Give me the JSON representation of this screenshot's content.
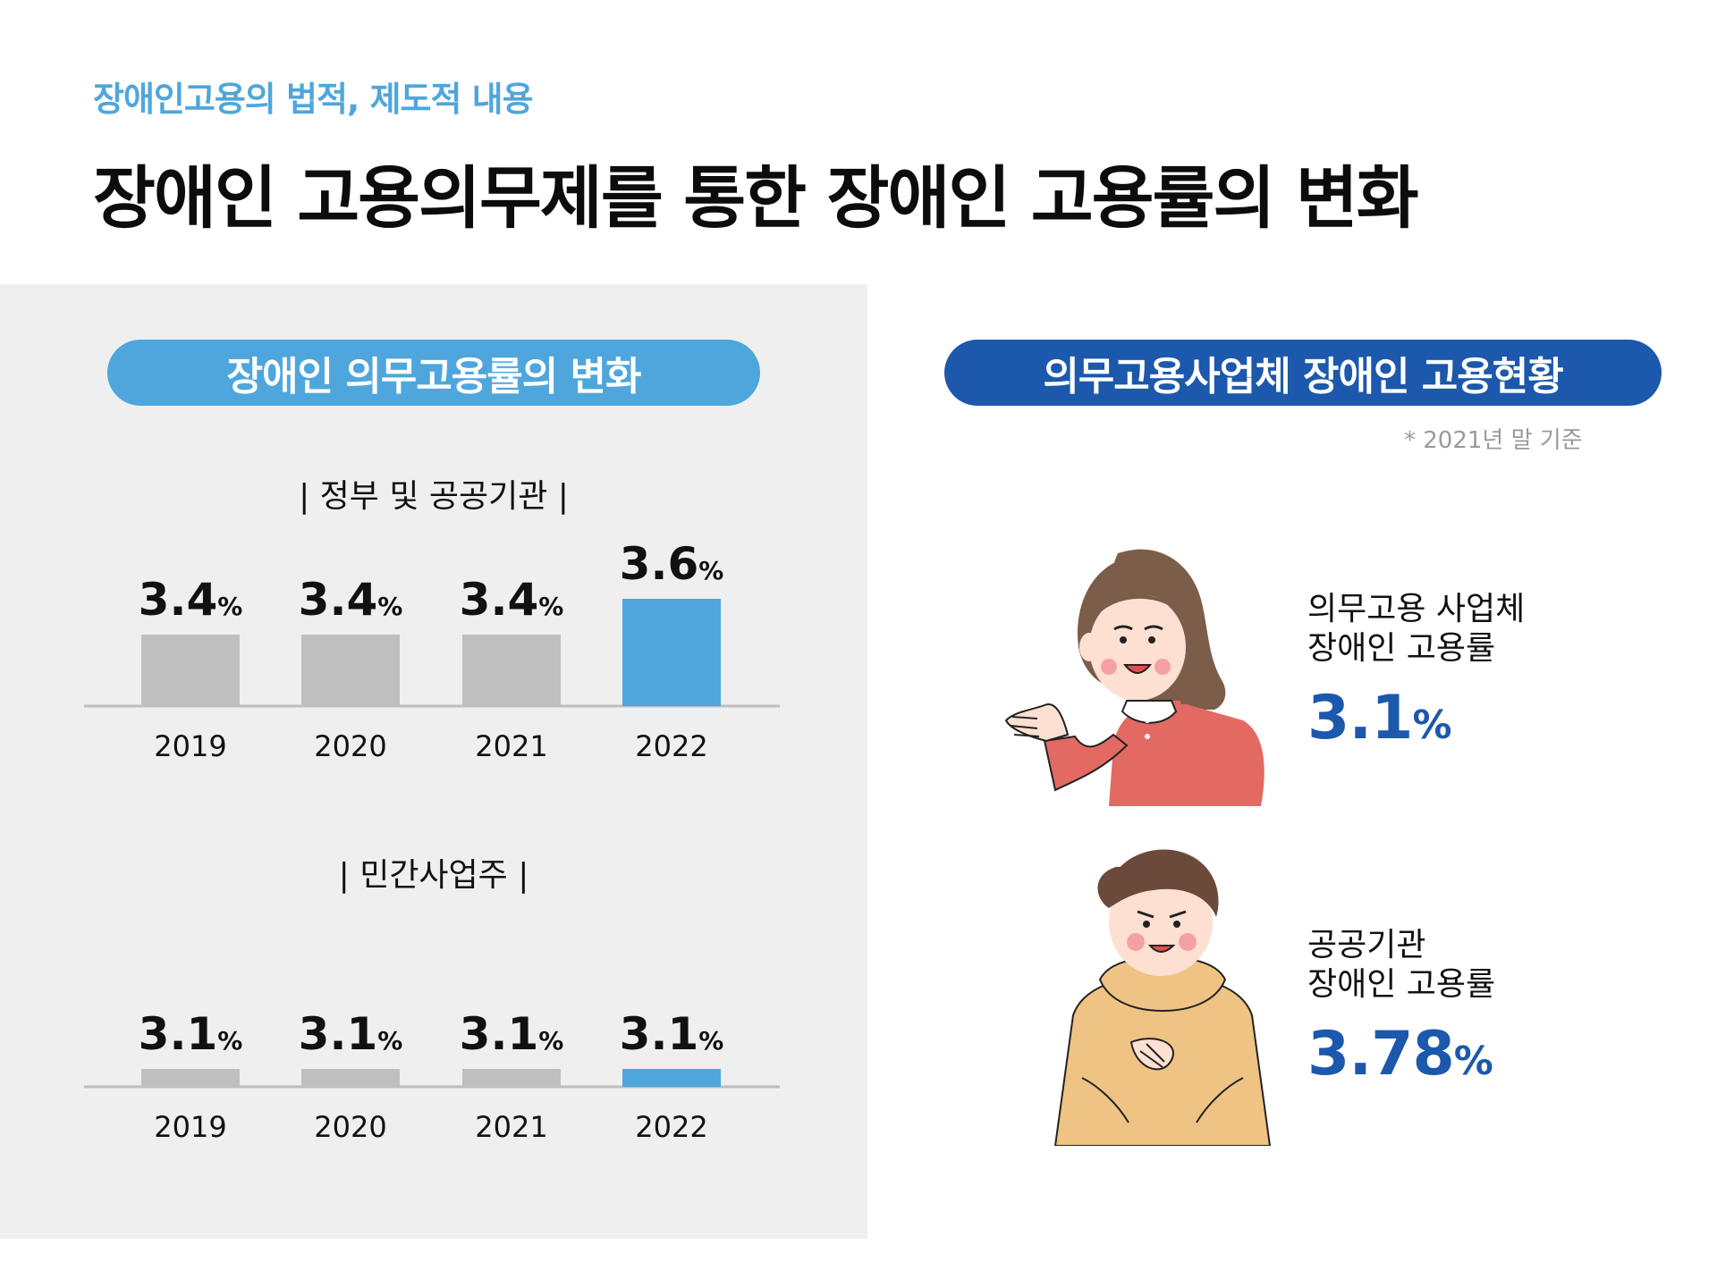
{
  "header": {
    "subtitle": "장애인고용의 법적, 제도적 내용",
    "title": "장애인 고용의무제를 통한 장애인 고용률의 변화"
  },
  "left": {
    "pill_label": "장애인 의무고용률의 변화"
  },
  "right": {
    "pill_label": "의무고용사업체 장애인 고용현황",
    "note": "* 2021년 말 기준",
    "cards": [
      {
        "line1": "의무고용 사업체",
        "line2": "장애인 고용률",
        "value": "3.1",
        "unit": "%"
      },
      {
        "line1": "공공기관",
        "line2": "장애인 고용률",
        "value": "3.78",
        "unit": "%"
      }
    ]
  },
  "colors": {
    "accent_light": "#4FA6DC",
    "accent_dark": "#1C58AC",
    "bar_gray": "#BFBFBF",
    "panel_bg": "#EFEFEF"
  },
  "chart_data": [
    {
      "type": "bar",
      "title": "| 정부 및 공공기관 |",
      "categories": [
        "2019",
        "2020",
        "2021",
        "2022"
      ],
      "values": [
        3.4,
        3.4,
        3.4,
        3.6
      ],
      "data_labels": [
        "3.4",
        "3.4",
        "3.4",
        "3.6"
      ],
      "unit": "%",
      "highlight_category": "2022",
      "grid": false,
      "legend": "none"
    },
    {
      "type": "bar",
      "title": "| 민간사업주 |",
      "categories": [
        "2019",
        "2020",
        "2021",
        "2022"
      ],
      "values": [
        3.1,
        3.1,
        3.1,
        3.1
      ],
      "data_labels": [
        "3.1",
        "3.1",
        "3.1",
        "3.1"
      ],
      "unit": "%",
      "highlight_category": "2022",
      "grid": false,
      "legend": "none"
    }
  ]
}
